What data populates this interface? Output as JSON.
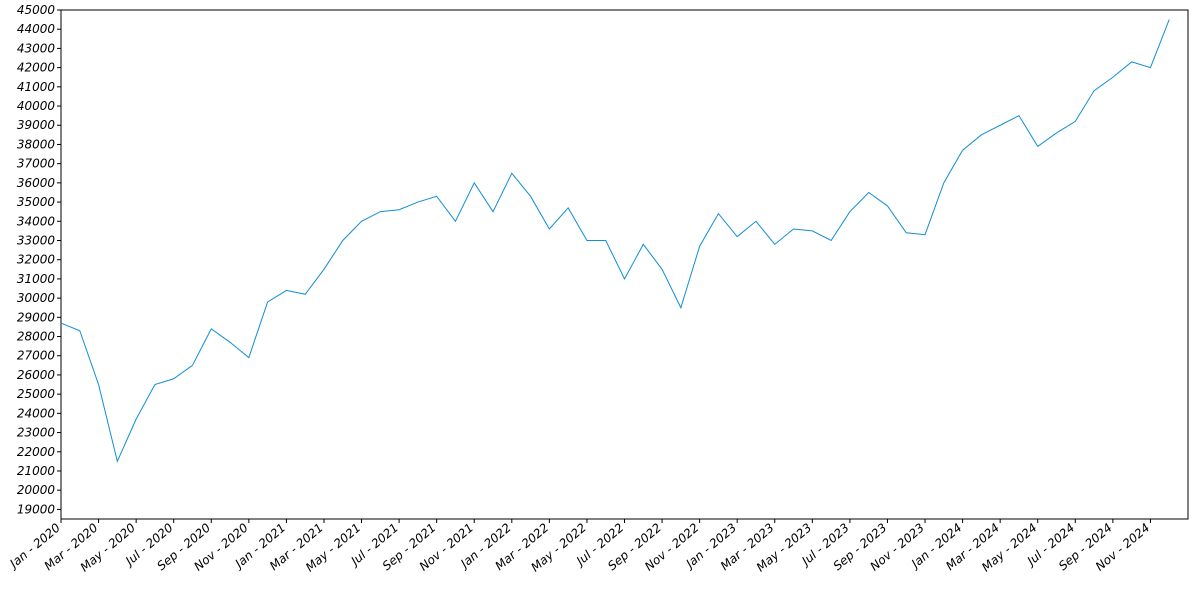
{
  "chart_data": {
    "type": "line",
    "x": [
      "2020-01",
      "2020-02",
      "2020-03",
      "2020-04",
      "2020-05",
      "2020-06",
      "2020-07",
      "2020-08",
      "2020-09",
      "2020-10",
      "2020-11",
      "2020-12",
      "2021-01",
      "2021-02",
      "2021-03",
      "2021-04",
      "2021-05",
      "2021-06",
      "2021-07",
      "2021-08",
      "2021-09",
      "2021-10",
      "2021-11",
      "2021-12",
      "2022-01",
      "2022-02",
      "2022-03",
      "2022-04",
      "2022-05",
      "2022-06",
      "2022-07",
      "2022-08",
      "2022-09",
      "2022-10",
      "2022-11",
      "2022-12",
      "2023-01",
      "2023-02",
      "2023-03",
      "2023-04",
      "2023-05",
      "2023-06",
      "2023-07",
      "2023-08",
      "2023-09",
      "2023-10",
      "2023-11",
      "2023-12",
      "2024-01",
      "2024-02",
      "2024-03",
      "2024-04",
      "2024-05",
      "2024-06",
      "2024-07",
      "2024-08",
      "2024-09",
      "2024-10",
      "2024-11",
      "2024-12"
    ],
    "series": [
      {
        "color": "#0f8fd6",
        "values": [
          28700,
          28300,
          25500,
          21500,
          23700,
          25500,
          25800,
          26500,
          28400,
          27700,
          26900,
          29800,
          30400,
          30200,
          31500,
          33000,
          34000,
          34500,
          34600,
          35000,
          35300,
          34000,
          36000,
          34500,
          36500,
          35300,
          33600,
          34700,
          33000,
          33000,
          31000,
          32800,
          31500,
          29500,
          32700,
          34400,
          33200,
          34000,
          32800,
          33600,
          33500,
          33000,
          34500,
          35500,
          34800,
          33400,
          33300,
          36000,
          37700,
          38500,
          39000,
          39500,
          37900,
          38600,
          39200,
          40800,
          41500,
          42300,
          42000,
          44500
        ]
      }
    ],
    "xlim": [
      "2020-01",
      "2025-01"
    ],
    "xticks": [
      {
        "value": "2020-01",
        "label": "Jan - 2020"
      },
      {
        "value": "2020-03",
        "label": "Mar - 2020"
      },
      {
        "value": "2020-05",
        "label": "May - 2020"
      },
      {
        "value": "2020-07",
        "label": "Jul - 2020"
      },
      {
        "value": "2020-09",
        "label": "Sep - 2020"
      },
      {
        "value": "2020-11",
        "label": "Nov - 2020"
      },
      {
        "value": "2021-01",
        "label": "Jan - 2021"
      },
      {
        "value": "2021-03",
        "label": "Mar - 2021"
      },
      {
        "value": "2021-05",
        "label": "May - 2021"
      },
      {
        "value": "2021-07",
        "label": "Jul - 2021"
      },
      {
        "value": "2021-09",
        "label": "Sep - 2021"
      },
      {
        "value": "2021-11",
        "label": "Nov - 2021"
      },
      {
        "value": "2022-01",
        "label": "Jan - 2022"
      },
      {
        "value": "2022-03",
        "label": "Mar - 2022"
      },
      {
        "value": "2022-05",
        "label": "May - 2022"
      },
      {
        "value": "2022-07",
        "label": "Jul - 2022"
      },
      {
        "value": "2022-09",
        "label": "Sep - 2022"
      },
      {
        "value": "2022-11",
        "label": "Nov - 2022"
      },
      {
        "value": "2023-01",
        "label": "Jan - 2023"
      },
      {
        "value": "2023-03",
        "label": "Mar - 2023"
      },
      {
        "value": "2023-05",
        "label": "May - 2023"
      },
      {
        "value": "2023-07",
        "label": "Jul - 2023"
      },
      {
        "value": "2023-09",
        "label": "Sep - 2023"
      },
      {
        "value": "2023-11",
        "label": "Nov - 2023"
      },
      {
        "value": "2024-01",
        "label": "Jan - 2024"
      },
      {
        "value": "2024-03",
        "label": "Mar - 2024"
      },
      {
        "value": "2024-05",
        "label": "May - 2024"
      },
      {
        "value": "2024-07",
        "label": "Jul - 2024"
      },
      {
        "value": "2024-09",
        "label": "Sep - 2024"
      },
      {
        "value": "2024-11",
        "label": "Nov - 2024"
      }
    ],
    "ylim": [
      18500,
      45000
    ],
    "yticks": [
      19000,
      20000,
      21000,
      22000,
      23000,
      24000,
      25000,
      26000,
      27000,
      28000,
      29000,
      30000,
      31000,
      32000,
      33000,
      34000,
      35000,
      36000,
      37000,
      38000,
      39000,
      40000,
      41000,
      42000,
      43000,
      44000,
      45000
    ],
    "grid": false
  }
}
